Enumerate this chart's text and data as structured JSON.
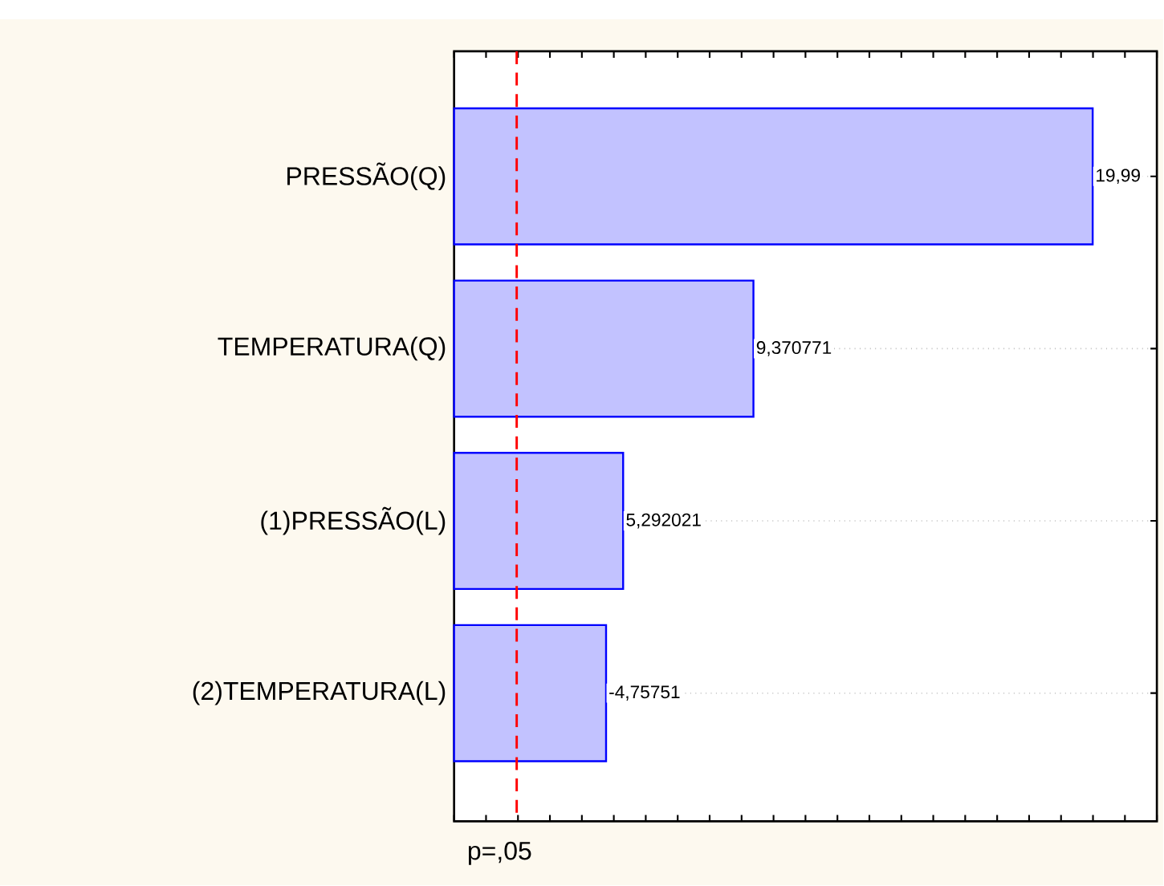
{
  "chart_data": {
    "type": "bar",
    "orientation": "horizontal",
    "categories": [
      "PRESSÃO(Q)",
      "TEMPERATURA(Q)",
      "(1)PRESSÃO(L)",
      "(2)TEMPERATURA(L)"
    ],
    "values": [
      19.99,
      9.370771,
      5.292021,
      4.75751
    ],
    "value_labels": [
      "19,99",
      "9,370771",
      "5,292021",
      "-4,75751"
    ],
    "color": "#0000ff",
    "xlim": [
      0,
      22
    ],
    "xticks": [
      {
        "value": 0,
        "label": null
      },
      {
        "value": 1,
        "label": null
      },
      {
        "value": 2,
        "label": null
      },
      {
        "value": 3,
        "label": null
      },
      {
        "value": 4,
        "label": null
      },
      {
        "value": 5,
        "label": null
      },
      {
        "value": 6,
        "label": null
      },
      {
        "value": 7,
        "label": null
      },
      {
        "value": 8,
        "label": null
      },
      {
        "value": 9,
        "label": null
      },
      {
        "value": 10,
        "label": null
      },
      {
        "value": 11,
        "label": null
      },
      {
        "value": 12,
        "label": null
      },
      {
        "value": 13,
        "label": null
      },
      {
        "value": 14,
        "label": null
      },
      {
        "value": 15,
        "label": null
      },
      {
        "value": 16,
        "label": null
      },
      {
        "value": 17,
        "label": null
      },
      {
        "value": 18,
        "label": null
      },
      {
        "value": 19,
        "label": null
      },
      {
        "value": 20,
        "label": null
      },
      {
        "value": 21,
        "label": null
      },
      {
        "value": 22,
        "label": null
      }
    ],
    "ref_lines": [
      {
        "axis": "x",
        "value": 1.96,
        "label": "p=,05",
        "color": "#ff0000",
        "line_style": "dashed"
      }
    ],
    "grid": "y",
    "tick_labels": "y"
  }
}
